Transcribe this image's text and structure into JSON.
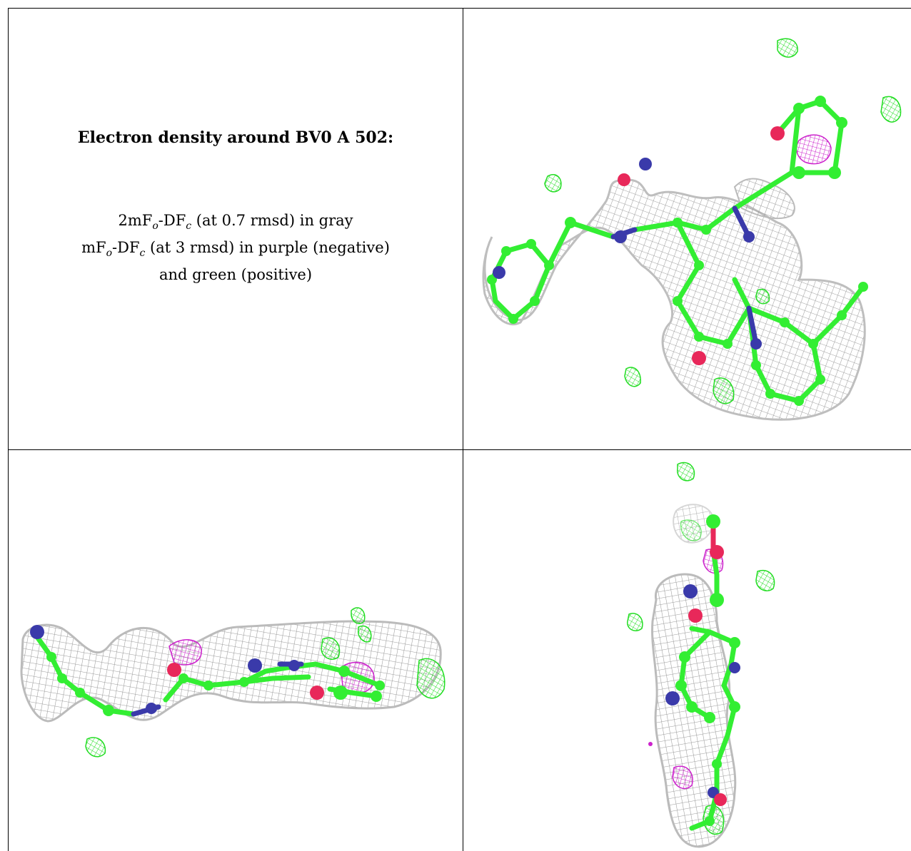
{
  "caption": {
    "title": "Electron density around BV0 A 502:",
    "line1_pre": "2mF",
    "line1_sub1": "o",
    "line1_mid": "-DF",
    "line1_sub2": "c",
    "line1_post": " (at 0.7 rmsd) in gray",
    "line2_pre": "mF",
    "line2_sub1": "o",
    "line2_mid": "-DF",
    "line2_sub2": "c",
    "line2_post": " (at 3 rmsd) in purple (negative)",
    "line3": "and green (positive)"
  },
  "colors": {
    "mesh_gray": "#9a9a9a",
    "carbon_green": "#33ee33",
    "nitrogen_blue": "#3a3aaa",
    "oxygen_red": "#e8285a",
    "negative_purple": "#cc22cc",
    "positive_green": "#22dd22"
  },
  "panels": [
    {
      "view": "top-view",
      "icon": "molecule-density-view-1"
    },
    {
      "view": "side-view",
      "icon": "molecule-density-view-2"
    },
    {
      "view": "end-view",
      "icon": "molecule-density-view-3"
    }
  ]
}
